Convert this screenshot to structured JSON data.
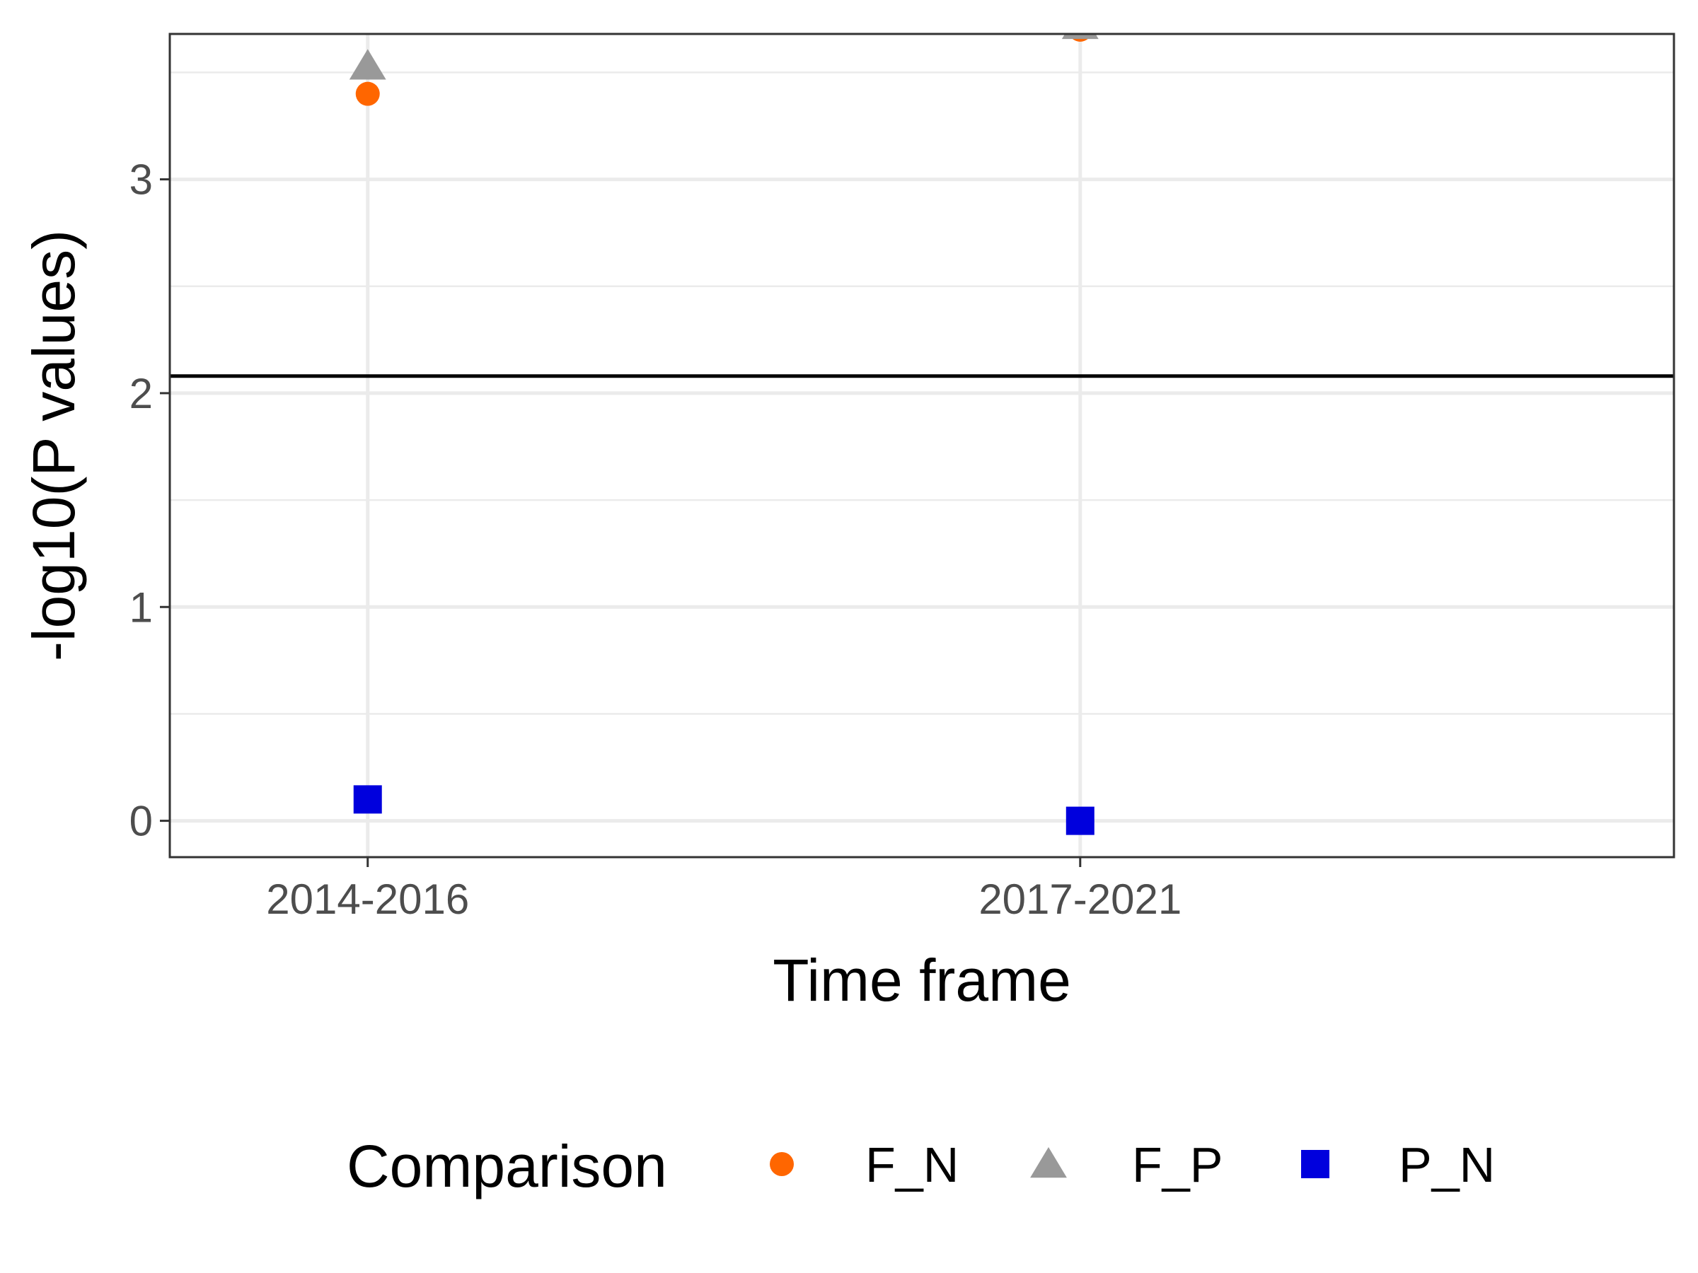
{
  "chart_data": {
    "type": "scatter",
    "xlabel": "Time frame",
    "ylabel": "-log10(P values)",
    "categories": [
      "2014-2016",
      "2017-2021"
    ],
    "ylim": [
      -0.17,
      3.68
    ],
    "yticks": [
      0,
      1,
      2,
      3
    ],
    "grid": true,
    "reference_line": {
      "y": 2.08,
      "color": "#000000"
    },
    "legend": {
      "title": "Comparison",
      "position": "bottom"
    },
    "series": [
      {
        "name": "F_N",
        "shape": "circle",
        "color": "#FF6600",
        "values": [
          3.4,
          3.7
        ]
      },
      {
        "name": "F_P",
        "shape": "triangle",
        "color": "#999999",
        "values": [
          3.53,
          3.72
        ]
      },
      {
        "name": "P_N",
        "shape": "square",
        "color": "#0000DD",
        "values": [
          0.1,
          0.0
        ]
      }
    ]
  }
}
